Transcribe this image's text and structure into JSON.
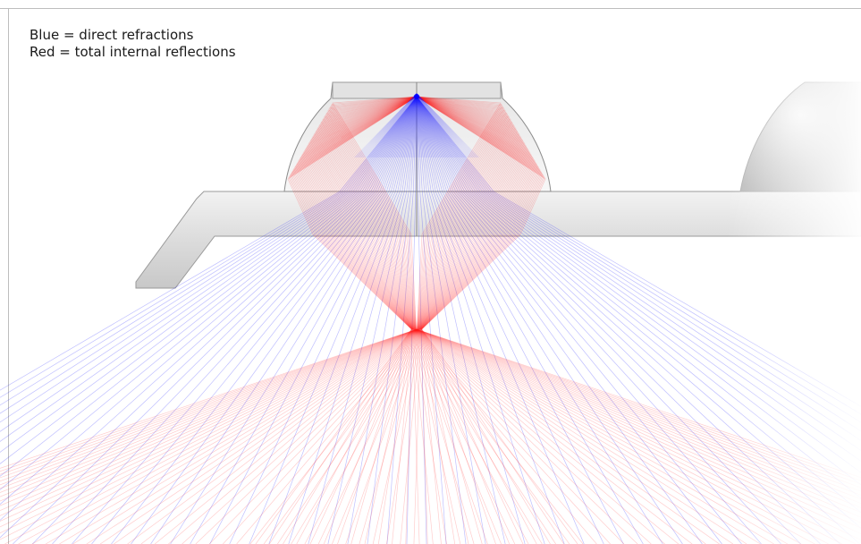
{
  "legend": {
    "blue_label": "Blue = direct refractions",
    "red_label": "Red = total internal reflections"
  },
  "colors": {
    "direct_refraction": "#1a1aff",
    "total_internal_reflection": "#ff1a1a",
    "housing": "#d9d9d9",
    "lens": "#eeeeee"
  }
}
